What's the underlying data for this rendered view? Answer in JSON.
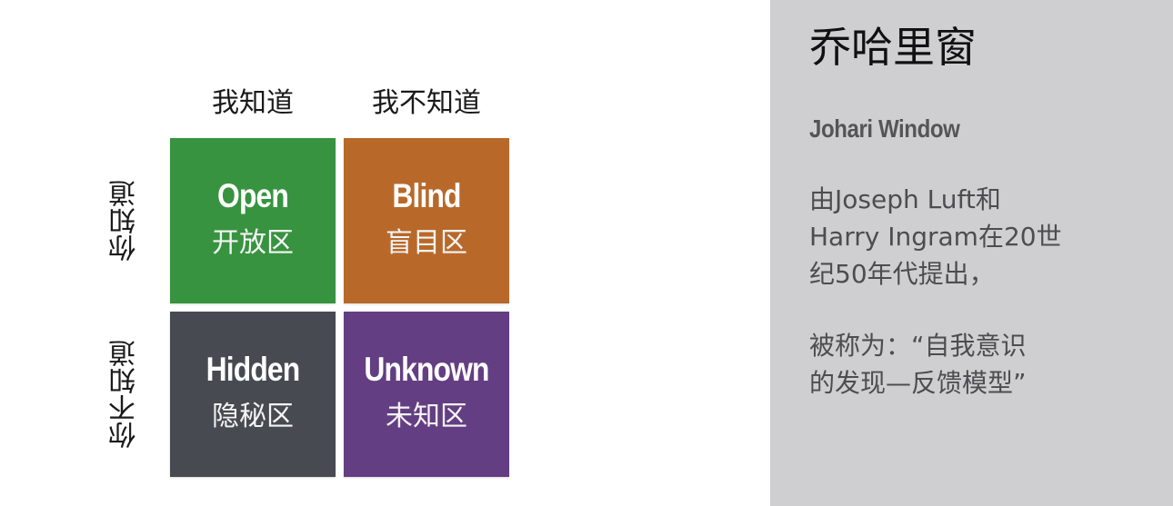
{
  "diagram": {
    "columns": [
      "我知道",
      "我不知道"
    ],
    "rows": [
      "你知道",
      "你不知道"
    ],
    "quadrants": [
      {
        "en": "Open",
        "zh": "开放区",
        "color": "#37933f"
      },
      {
        "en": "Blind",
        "zh": "盲目区",
        "color": "#b8692a"
      },
      {
        "en": "Hidden",
        "zh": "隐秘区",
        "color": "#484a52"
      },
      {
        "en": "Unknown",
        "zh": "未知区",
        "color": "#643e82"
      }
    ]
  },
  "panel": {
    "title": "乔哈里窗",
    "subtitle": "Johari Window",
    "paragraph1": [
      "由Joseph Luft和",
      "Harry Ingram在20世",
      "纪50年代提出，"
    ],
    "paragraph2": [
      "被称为：“自我意识",
      "的发现—反馈模型”"
    ],
    "background": "#cfcfd1"
  }
}
